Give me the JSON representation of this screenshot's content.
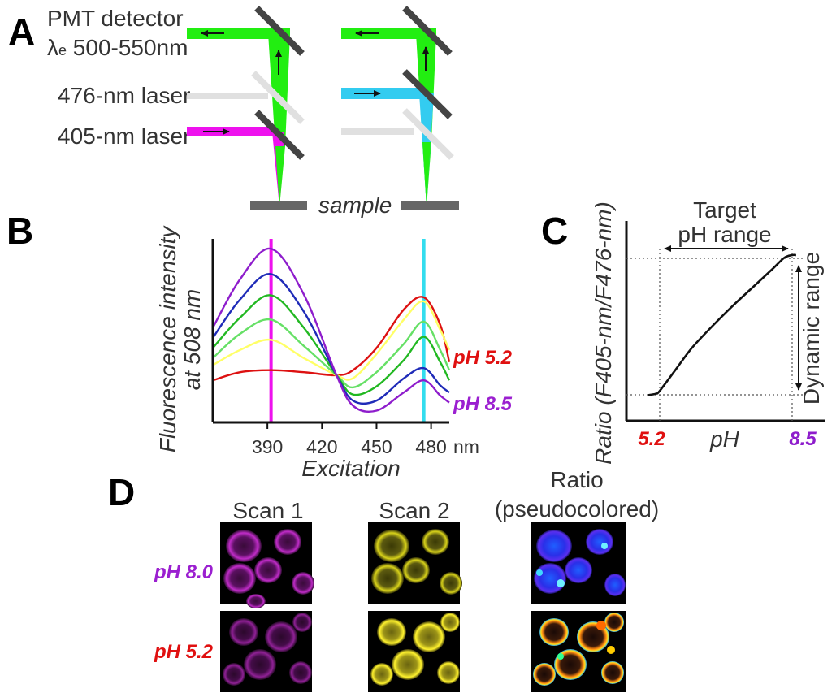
{
  "panels": {
    "a": "A",
    "b": "B",
    "c": "C",
    "d": "D"
  },
  "panel_a": {
    "pmt_line1": "PMT detector",
    "pmt_line2_lambda": "λ",
    "pmt_line2_sub": "e",
    "pmt_line2_range": " 500-550nm",
    "laser_476": "476-nm laser",
    "laser_405": "405-nm laser",
    "sample": "sample",
    "colors": {
      "green": "#22ee11",
      "magenta": "#ee11ee",
      "cyan": "#33ccf0",
      "mirror": "#444444",
      "inactive": "#e0e0e0",
      "sample": "#666666"
    }
  },
  "panel_b": {
    "ylabel_line1": "Fluorescence intensity",
    "ylabel_line2": "at 508 nm",
    "xlabel": "Excitation",
    "unit": "nm",
    "ph_low_label": "pH 5.2",
    "ph_high_label": "pH 8.5",
    "ph_low_color": "#e01010",
    "ph_high_color": "#9b1fd0"
  },
  "chart_data": [
    {
      "type": "line",
      "ylabel": "Fluorescence intensity at 508 nm",
      "xlabel": "Excitation",
      "x_unit": "nm",
      "xlim": [
        360,
        490
      ],
      "x_ticks": [
        390,
        420,
        450,
        480
      ],
      "vertical_markers": [
        {
          "x": 392,
          "color": "#ee11ee"
        },
        {
          "x": 476,
          "color": "#33ddee"
        }
      ],
      "x": [
        360,
        375,
        392,
        410,
        428,
        437,
        450,
        465,
        476,
        485,
        490
      ],
      "series": [
        {
          "name": "pH 8.5",
          "color": "#8e1dcc",
          "values": [
            92,
            140,
            170,
            125,
            45,
            15,
            10,
            28,
            40,
            25,
            18
          ]
        },
        {
          "name": "",
          "color": "#1f2bb8",
          "values": [
            82,
            120,
            145,
            108,
            45,
            20,
            20,
            42,
            52,
            35,
            28
          ]
        },
        {
          "name": "",
          "color": "#22b822",
          "values": [
            72,
            102,
            124,
            92,
            45,
            26,
            34,
            60,
            83,
            58,
            40
          ]
        },
        {
          "name": "",
          "color": "#66e066",
          "values": [
            62,
            86,
            100,
            74,
            45,
            33,
            48,
            76,
            98,
            70,
            50
          ]
        },
        {
          "name": "",
          "color": "#ffff66",
          "values": [
            55,
            70,
            80,
            62,
            45,
            42,
            66,
            100,
            118,
            90,
            70
          ]
        },
        {
          "name": "pH 5.2",
          "color": "#dd1111",
          "values": [
            40,
            48,
            50,
            48,
            45,
            50,
            72,
            110,
            122,
            95,
            58
          ]
        }
      ]
    },
    {
      "type": "line",
      "ylabel": "Ratio (F405-nm/F476-nm)",
      "xlabel": "pH",
      "x_ticks": [
        "5.2",
        "8.5"
      ],
      "annotations": [
        "Target pH range",
        "Dynamic range"
      ],
      "x": [
        4.9,
        5.1,
        5.2,
        5.6,
        6.0,
        6.5,
        7.0,
        7.5,
        8.0,
        8.3,
        8.5,
        8.6
      ],
      "series": [
        {
          "name": "",
          "values": [
            0.02,
            0.03,
            0.05,
            0.2,
            0.35,
            0.5,
            0.64,
            0.77,
            0.9,
            0.98,
            1.0,
            1.0
          ]
        }
      ]
    }
  ],
  "panel_c": {
    "annotation_target_line1": "Target",
    "annotation_target_line2": "pH range",
    "annotation_dynamic": "Dynamic range",
    "ylabel": "Ratio (F405-nm/F476-nm)",
    "xlabel": "pH",
    "tick_low": "5.2",
    "tick_high": "8.5",
    "tick_low_color": "#e01010",
    "tick_high_color": "#8e1dcc"
  },
  "panel_d": {
    "col1": "Scan 1",
    "col2": "Scan 2",
    "col3_line1": "Ratio",
    "col3_line2": "(pseudocolored)",
    "row1": "pH 8.0",
    "row2": "pH 5.2",
    "row1_color": "#9b1fd0",
    "row2_color": "#e01010"
  }
}
